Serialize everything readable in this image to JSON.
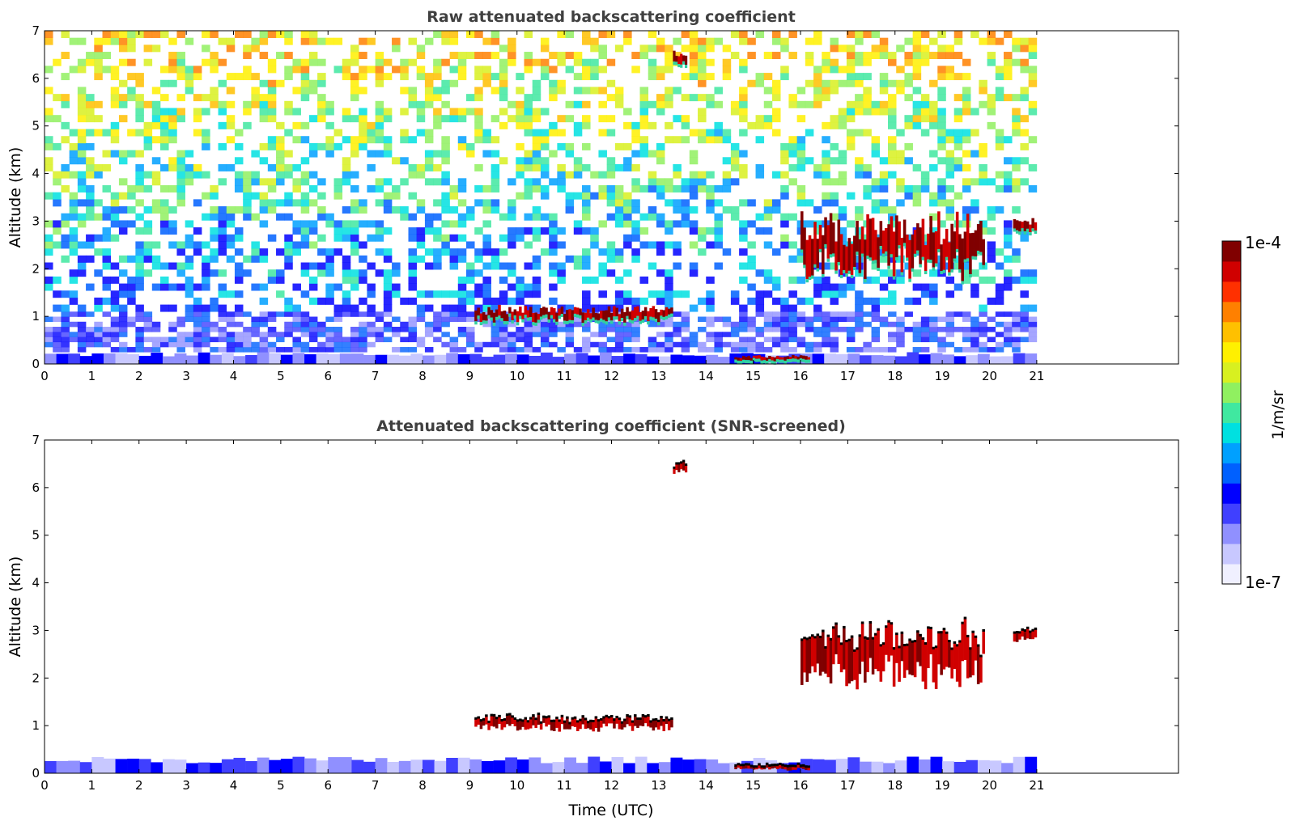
{
  "chart_data": [
    {
      "type": "heatmap",
      "title": "Raw attenuated backscattering coefficient",
      "xlabel": "",
      "ylabel": "Altitude (km)",
      "xlim": [
        0,
        24
      ],
      "ylim": [
        0,
        7
      ],
      "xticks": [
        0,
        1,
        2,
        3,
        4,
        5,
        6,
        7,
        8,
        9,
        10,
        11,
        12,
        13,
        14,
        15,
        16,
        17,
        18,
        19,
        20,
        21
      ],
      "yticks": [
        0,
        1,
        2,
        3,
        4,
        5,
        6,
        7
      ],
      "data_end_time": 21,
      "features": [
        {
          "name": "surface layer",
          "t_start": 0,
          "t_end": 21,
          "alt_bottom": 0,
          "alt_top": 0.25,
          "level": "low"
        },
        {
          "name": "boundary layer aerosol",
          "t_start": 0,
          "t_end": 21,
          "alt_bottom": 0.25,
          "alt_top": 1.1,
          "level": "low-noisy"
        },
        {
          "name": "background noise",
          "t_start": 0,
          "t_end": 21,
          "alt_bottom": 1.1,
          "alt_top": 7,
          "level": "mid-high-noisy"
        },
        {
          "name": "low cloud",
          "t_start": 9.1,
          "t_end": 13.3,
          "alt_bottom": 0.85,
          "alt_top": 1.25,
          "level": "max"
        },
        {
          "name": "fog/low cloud",
          "t_start": 14.6,
          "t_end": 16.2,
          "alt_bottom": 0.05,
          "alt_top": 0.2,
          "level": "max"
        },
        {
          "name": "mid cloud",
          "t_start": 16,
          "t_end": 19.9,
          "alt_bottom": 1.7,
          "alt_top": 3.3,
          "level": "max"
        },
        {
          "name": "mid cloud east",
          "t_start": 20.5,
          "t_end": 21,
          "alt_bottom": 2.7,
          "alt_top": 3.1,
          "level": "max"
        },
        {
          "name": "high cloud",
          "t_start": 13.3,
          "t_end": 13.6,
          "alt_bottom": 6.2,
          "alt_top": 6.6,
          "level": "max"
        }
      ]
    },
    {
      "type": "heatmap",
      "title": "Attenuated backscattering coefficient (SNR-screened)",
      "xlabel": "Time (UTC)",
      "ylabel": "Altitude (km)",
      "xlim": [
        0,
        24
      ],
      "ylim": [
        0,
        7
      ],
      "xticks": [
        0,
        1,
        2,
        3,
        4,
        5,
        6,
        7,
        8,
        9,
        10,
        11,
        12,
        13,
        14,
        15,
        16,
        17,
        18,
        19,
        20,
        21
      ],
      "yticks": [
        0,
        1,
        2,
        3,
        4,
        5,
        6,
        7
      ],
      "data_end_time": 21,
      "features": [
        {
          "name": "boundary layer",
          "t_start": 0,
          "t_end": 21,
          "alt_bottom": 0,
          "alt_top": 0.35,
          "level": "low"
        },
        {
          "name": "low cloud",
          "t_start": 9.1,
          "t_end": 13.3,
          "alt_bottom": 0.85,
          "alt_top": 1.25,
          "level": "max"
        },
        {
          "name": "fog/low cloud",
          "t_start": 14.6,
          "t_end": 16.2,
          "alt_bottom": 0.05,
          "alt_top": 0.2,
          "level": "max"
        },
        {
          "name": "mid cloud",
          "t_start": 16,
          "t_end": 19.9,
          "alt_bottom": 1.7,
          "alt_top": 3.3,
          "level": "max"
        },
        {
          "name": "mid cloud east",
          "t_start": 20.5,
          "t_end": 21,
          "alt_bottom": 2.7,
          "alt_top": 3.1,
          "level": "max"
        },
        {
          "name": "high cloud",
          "t_start": 13.3,
          "t_end": 13.6,
          "alt_bottom": 6.2,
          "alt_top": 6.6,
          "level": "max"
        }
      ]
    }
  ],
  "colorbar": {
    "max_label": "1e-4",
    "min_label": "1e-7",
    "unit_label": "1/m/sr",
    "colors": [
      "#f0f0ff",
      "#c8c8ff",
      "#9090ff",
      "#4040ff",
      "#0000ff",
      "#0060ff",
      "#00a0ff",
      "#00e0e0",
      "#40e8a0",
      "#90f060",
      "#d8f020",
      "#fff000",
      "#ffc000",
      "#ff8000",
      "#ff3000",
      "#d00000",
      "#800000"
    ]
  }
}
